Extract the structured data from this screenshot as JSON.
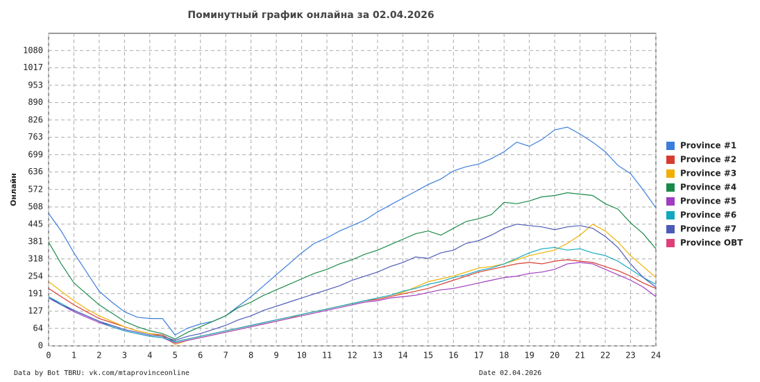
{
  "chart_data": {
    "type": "line",
    "title": "Поминутный график онлайна за 02.04.2026",
    "ylabel": "Онлайн",
    "footer_left": "Data by Bot TBRU: vk.com/mtaprovinceonline",
    "footer_right": "Date 02.04.2026",
    "grid": true,
    "legend": "right",
    "xlim": [
      0,
      24
    ],
    "xticks": [
      0,
      1,
      2,
      3,
      4,
      5,
      6,
      7,
      8,
      9,
      10,
      11,
      12,
      13,
      14,
      15,
      16,
      17,
      18,
      19,
      20,
      21,
      22,
      23,
      24
    ],
    "ylim": [
      0,
      1143
    ],
    "yticks": [
      0,
      64,
      127,
      191,
      254,
      318,
      381,
      445,
      508,
      572,
      636,
      699,
      763,
      826,
      890,
      953,
      1017,
      1080
    ],
    "x": [
      0,
      0.5,
      1,
      1.5,
      2,
      2.5,
      3,
      3.5,
      4,
      4.5,
      5,
      5.5,
      6,
      6.5,
      7,
      7.5,
      8,
      8.5,
      9,
      9.5,
      10,
      10.5,
      11,
      11.5,
      12,
      12.5,
      13,
      13.5,
      14,
      14.5,
      15,
      15.5,
      16,
      16.5,
      17,
      17.5,
      18,
      18.5,
      19,
      19.5,
      20,
      20.5,
      21,
      21.5,
      22,
      22.5,
      23,
      23.5,
      24
    ],
    "series": [
      {
        "name": "Province #1",
        "color": "#3b7ddd",
        "values": [
          485,
          420,
          340,
          270,
          200,
          160,
          125,
          105,
          100,
          100,
          40,
          65,
          80,
          90,
          110,
          145,
          180,
          220,
          260,
          300,
          340,
          375,
          395,
          420,
          440,
          460,
          490,
          515,
          540,
          565,
          590,
          610,
          640,
          655,
          665,
          685,
          710,
          745,
          730,
          755,
          790,
          800,
          775,
          745,
          710,
          660,
          630,
          570,
          505
        ]
      },
      {
        "name": "Province #2",
        "color": "#d63c2f",
        "values": [
          210,
          180,
          150,
          125,
          100,
          85,
          70,
          55,
          45,
          40,
          15,
          25,
          35,
          45,
          55,
          65,
          75,
          85,
          95,
          105,
          115,
          125,
          135,
          145,
          155,
          165,
          170,
          180,
          190,
          200,
          210,
          225,
          240,
          255,
          270,
          280,
          290,
          300,
          305,
          300,
          310,
          315,
          310,
          305,
          290,
          275,
          255,
          230,
          210
        ]
      },
      {
        "name": "Province #3",
        "color": "#f0b000",
        "values": [
          235,
          200,
          165,
          135,
          110,
          90,
          70,
          55,
          45,
          35,
          5,
          20,
          30,
          40,
          50,
          60,
          70,
          80,
          90,
          100,
          115,
          125,
          135,
          145,
          155,
          165,
          175,
          185,
          195,
          215,
          235,
          245,
          255,
          270,
          285,
          290,
          300,
          315,
          330,
          340,
          350,
          375,
          405,
          445,
          420,
          380,
          330,
          290,
          250
        ]
      },
      {
        "name": "Province #4",
        "color": "#1a8a4a",
        "values": [
          380,
          300,
          230,
          190,
          150,
          120,
          90,
          70,
          55,
          45,
          25,
          50,
          70,
          90,
          110,
          140,
          160,
          185,
          205,
          225,
          245,
          265,
          280,
          300,
          315,
          335,
          350,
          370,
          390,
          410,
          420,
          405,
          430,
          455,
          465,
          480,
          525,
          520,
          530,
          545,
          550,
          560,
          555,
          550,
          520,
          500,
          450,
          410,
          355
        ]
      },
      {
        "name": "Province #5",
        "color": "#a03cc0",
        "values": [
          180,
          150,
          125,
          105,
          85,
          70,
          55,
          45,
          35,
          30,
          10,
          20,
          30,
          40,
          50,
          60,
          70,
          80,
          90,
          100,
          110,
          120,
          130,
          140,
          150,
          160,
          165,
          175,
          180,
          185,
          195,
          205,
          210,
          220,
          230,
          240,
          250,
          255,
          265,
          270,
          280,
          300,
          305,
          300,
          280,
          260,
          240,
          215,
          180
        ]
      },
      {
        "name": "Province #6",
        "color": "#10a8c0",
        "values": [
          180,
          155,
          130,
          110,
          90,
          70,
          55,
          45,
          35,
          30,
          15,
          25,
          35,
          45,
          55,
          65,
          75,
          85,
          95,
          105,
          115,
          125,
          135,
          145,
          155,
          165,
          175,
          185,
          200,
          210,
          225,
          235,
          250,
          260,
          275,
          285,
          300,
          320,
          340,
          355,
          360,
          350,
          355,
          340,
          330,
          310,
          280,
          250,
          225
        ]
      },
      {
        "name": "Province #7",
        "color": "#4c5ab8",
        "values": [
          175,
          150,
          130,
          110,
          90,
          75,
          60,
          50,
          40,
          35,
          20,
          35,
          45,
          60,
          75,
          95,
          110,
          130,
          145,
          160,
          175,
          190,
          205,
          220,
          240,
          255,
          270,
          290,
          305,
          325,
          320,
          340,
          350,
          375,
          385,
          405,
          430,
          445,
          440,
          435,
          425,
          435,
          440,
          430,
          400,
          360,
          300,
          250,
          215
        ]
      },
      {
        "name": "Province OBT",
        "color": "#e0407a",
        "values": [
          null,
          null,
          null,
          null,
          null,
          null,
          null,
          null,
          null,
          null,
          null,
          null,
          null,
          null,
          null,
          null,
          null,
          null,
          null,
          null,
          null,
          null,
          null,
          null,
          null,
          null,
          null,
          null,
          null,
          null,
          null,
          null,
          null,
          null,
          null,
          null,
          null,
          null,
          null,
          null,
          null,
          null,
          null,
          null,
          null,
          null,
          null,
          null,
          null
        ]
      }
    ]
  }
}
